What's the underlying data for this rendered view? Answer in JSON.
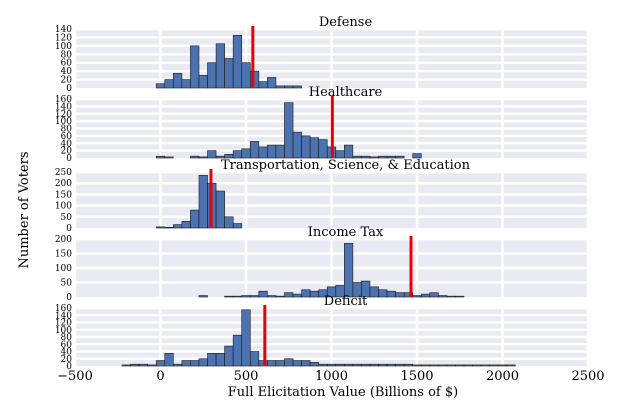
{
  "chart_data": {
    "type": "histogram",
    "xlabel": "Full Elicitation Value (Billions of $)",
    "ylabel": "Number of Voters",
    "xlim": [
      -500,
      2500
    ],
    "xticks": [
      -500,
      0,
      500,
      1000,
      1500,
      2000,
      2500
    ],
    "bin_width": 50,
    "colors": {
      "bar": "#4C72B0",
      "bar_edge": "#1a1a1a",
      "panel_bg": "#EAEAF2",
      "marker": "#E8000B"
    },
    "panels": [
      {
        "title": "Defense",
        "ylim": [
          0,
          140
        ],
        "yticks": [
          0,
          20,
          40,
          60,
          80,
          100,
          120,
          140
        ],
        "marker_x": 540,
        "bins_start": -25,
        "counts": [
          10,
          20,
          35,
          20,
          100,
          30,
          60,
          105,
          70,
          125,
          60,
          40,
          15,
          25,
          5,
          5,
          5
        ]
      },
      {
        "title": "Healthcare",
        "ylim": [
          0,
          160
        ],
        "yticks": [
          0,
          20,
          40,
          60,
          80,
          100,
          120,
          140,
          160
        ],
        "marker_x": 1005,
        "bins_start": -25,
        "counts": [
          5,
          3,
          0,
          0,
          5,
          3,
          20,
          5,
          10,
          20,
          25,
          45,
          30,
          35,
          35,
          150,
          70,
          60,
          55,
          50,
          30,
          20,
          35,
          5,
          5,
          3,
          5,
          5,
          5,
          0,
          12
        ]
      },
      {
        "title": "Transportation, Science, & Education",
        "ylim": [
          0,
          250
        ],
        "yticks": [
          0,
          50,
          100,
          150,
          200,
          250
        ],
        "marker_x": 295,
        "bins_start": -25,
        "counts": [
          5,
          3,
          15,
          30,
          80,
          235,
          200,
          165,
          50,
          20
        ]
      },
      {
        "title": "Income Tax",
        "ylim": [
          0,
          200
        ],
        "yticks": [
          0,
          50,
          100,
          150,
          200
        ],
        "marker_x": 1465,
        "bins_start": 225,
        "counts": [
          5,
          0,
          0,
          3,
          3,
          5,
          5,
          20,
          5,
          3,
          15,
          10,
          25,
          20,
          25,
          35,
          40,
          185,
          50,
          55,
          35,
          25,
          20,
          15,
          15,
          5,
          10,
          15,
          5,
          3,
          3
        ]
      },
      {
        "title": "Deficit",
        "ylim": [
          0,
          160
        ],
        "yticks": [
          0,
          20,
          40,
          60,
          80,
          100,
          120,
          140,
          160
        ],
        "marker_x": 610,
        "bins_start": -225,
        "counts": [
          3,
          5,
          5,
          3,
          15,
          35,
          5,
          15,
          15,
          20,
          35,
          35,
          55,
          85,
          155,
          40,
          15,
          15,
          15,
          20,
          15,
          15,
          10,
          5,
          5,
          5,
          5,
          5,
          5,
          5,
          5,
          5,
          5,
          5,
          3,
          3,
          3,
          3,
          3,
          3,
          3,
          3,
          3,
          3,
          3,
          3
        ]
      }
    ]
  }
}
